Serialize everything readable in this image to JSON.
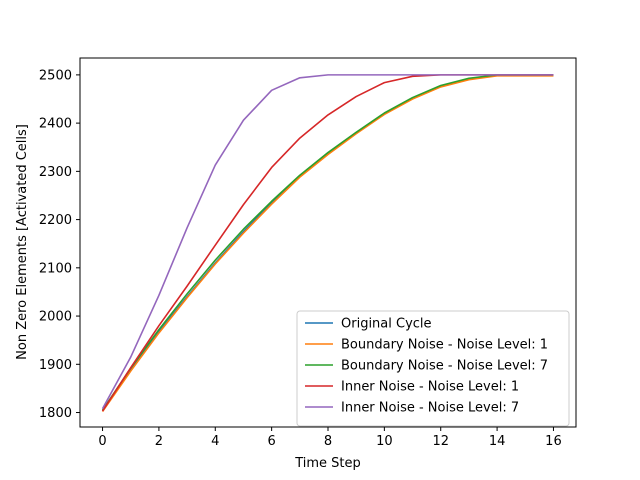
{
  "chart_data": {
    "type": "line",
    "title": "",
    "xlabel": "Time Step",
    "ylabel": "Non Zero Elements [Activated Cells]",
    "xlim": [
      -0.8,
      16.8
    ],
    "ylim": [
      1770,
      2535
    ],
    "xticks": [
      0,
      2,
      4,
      6,
      8,
      10,
      12,
      14,
      16
    ],
    "yticks": [
      1800,
      1900,
      2000,
      2100,
      2200,
      2300,
      2400,
      2500
    ],
    "grid": false,
    "legend_position": "lower-right",
    "x": [
      0,
      1,
      2,
      3,
      4,
      5,
      6,
      7,
      8,
      9,
      10,
      11,
      12,
      13,
      14,
      15,
      16
    ],
    "series": [
      {
        "name": "Original Cycle",
        "color": "#1f77b4",
        "values": [
          1803,
          1888,
          1968,
          2040,
          2110,
          2175,
          2235,
          2290,
          2337,
          2380,
          2420,
          2452,
          2477,
          2492,
          2500,
          2500,
          2500
        ]
      },
      {
        "name": "Boundary Noise - Noise Level: 1",
        "color": "#ff7f0e",
        "values": [
          1802,
          1886,
          1965,
          2038,
          2108,
          2172,
          2232,
          2288,
          2335,
          2378,
          2418,
          2450,
          2475,
          2490,
          2498,
          2498,
          2498
        ]
      },
      {
        "name": "Boundary Noise - Noise Level: 7",
        "color": "#2ca02c",
        "values": [
          1805,
          1892,
          1972,
          2046,
          2116,
          2180,
          2238,
          2292,
          2339,
          2381,
          2421,
          2453,
          2478,
          2493,
          2500,
          2500,
          2500
        ]
      },
      {
        "name": "Inner Noise - Noise Level: 1",
        "color": "#d62728",
        "values": [
          1803,
          1893,
          1980,
          2062,
          2147,
          2231,
          2308,
          2369,
          2417,
          2455,
          2484,
          2497,
          2500,
          2500,
          2500,
          2500,
          2500
        ]
      },
      {
        "name": "Inner Noise - Noise Level: 7",
        "color": "#9467bd",
        "values": [
          1808,
          1915,
          2043,
          2183,
          2313,
          2406,
          2468,
          2494,
          2500,
          2500,
          2500,
          2500,
          2500,
          2500,
          2500,
          2500,
          2500
        ]
      }
    ]
  }
}
